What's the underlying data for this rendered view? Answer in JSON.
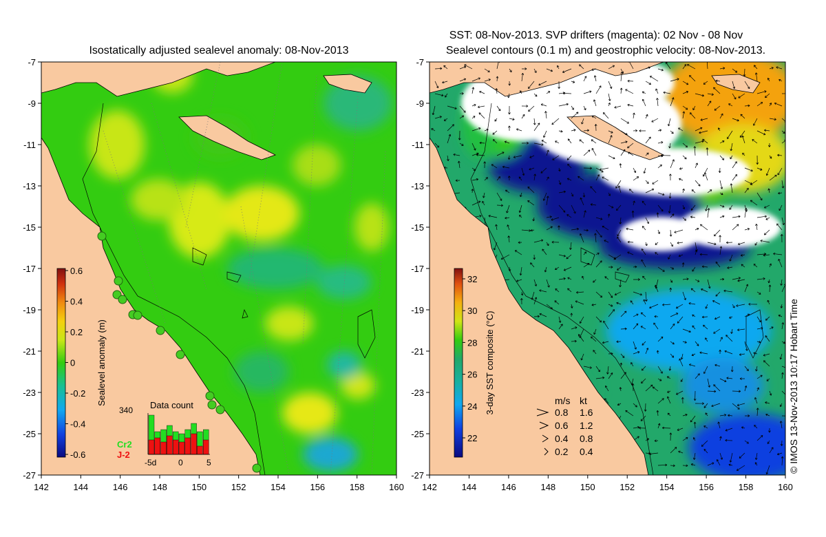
{
  "left_panel": {
    "title": "Isostatically adjusted sealevel anomaly: 08-Nov-2013",
    "x_ticks": [
      "142",
      "144",
      "146",
      "148",
      "150",
      "152",
      "154",
      "156",
      "158",
      "160"
    ],
    "y_ticks": [
      "-7",
      "-9",
      "-11",
      "-13",
      "-15",
      "-17",
      "-19",
      "-21",
      "-23",
      "-25",
      "-27"
    ],
    "colorbar": {
      "label": "Sealevel anomaly (m)",
      "ticks": [
        "0.6",
        "0.4",
        "0.2",
        "0",
        "-0.2",
        "-0.4",
        "-0.6"
      ]
    },
    "inset": {
      "title": "Data count",
      "ymax": "340",
      "x_labels": [
        "-5d",
        "0",
        "5"
      ],
      "legend": [
        {
          "label": "Cr2",
          "color": "#22dd22"
        },
        {
          "label": "J-2",
          "color": "#ee1111"
        }
      ],
      "bars_cr2": [
        0.95,
        0.55,
        0.6,
        0.7,
        0.55,
        0.5,
        0.6,
        0.75,
        0.55,
        0.6
      ],
      "bars_j2": [
        0.35,
        0.4,
        0.3,
        0.45,
        0.35,
        0.3,
        0.4,
        0.5,
        0.2,
        0.35
      ]
    }
  },
  "right_panel": {
    "title_line1": "SST: 08-Nov-2013. SVP drifters (magenta): 02 Nov - 08 Nov",
    "title_line2": "Sealevel contours (0.1 m) and geostrophic velocity: 08-Nov-2013.",
    "x_ticks": [
      "142",
      "144",
      "146",
      "148",
      "150",
      "152",
      "154",
      "156",
      "158",
      "160"
    ],
    "y_ticks": [
      "-7",
      "-9",
      "-11",
      "-13",
      "-15",
      "-17",
      "-19",
      "-21",
      "-23",
      "-25",
      "-27"
    ],
    "colorbar": {
      "label": "3-day SST composite (°C)",
      "ticks": [
        "32",
        "30",
        "28",
        "26",
        "24",
        "22"
      ]
    },
    "velocity_legend": {
      "header_ms": "m/s",
      "header_kt": "kt",
      "rows": [
        {
          "ms": "0.8",
          "kt": "1.6"
        },
        {
          "ms": "0.6",
          "kt": "1.2"
        },
        {
          "ms": "0.4",
          "kt": "0.8"
        },
        {
          "ms": "0.2",
          "kt": "0.4"
        }
      ]
    }
  },
  "credit": "© IMOS 13-Nov-2013 10:17 Hobart Time",
  "colors": {
    "land": "#f9c9a0",
    "sla_zero": "#33cc11",
    "sla_pos": "#d7ea16",
    "sst_26": "#22a86a",
    "cloud": "#ffffff",
    "sst_warm": "#f4a20a"
  }
}
